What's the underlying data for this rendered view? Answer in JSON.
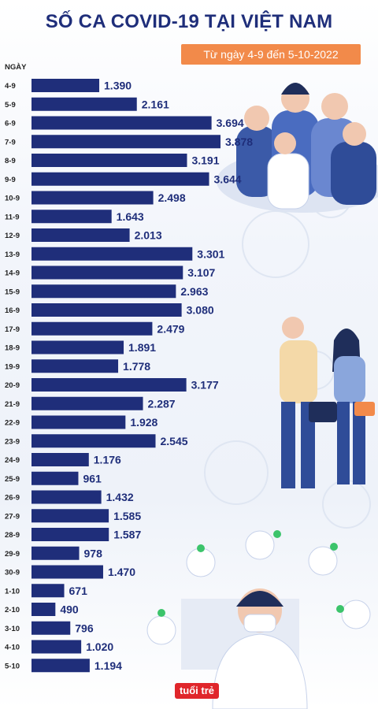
{
  "title": "SỐ CA COVID-19 TẠI VIỆT NAM",
  "subtitle": "Từ ngày 4-9 đến 5-10-2022",
  "logo_text": "tuổi trẻ",
  "colors": {
    "bar": "#1f2e7a",
    "accent": "#f28a4a",
    "title": "#1f2e7a"
  },
  "chart_data": {
    "type": "bar",
    "orientation": "horizontal",
    "category_axis_label": "NGÀY",
    "categories": [
      "4-9",
      "5-9",
      "6-9",
      "7-9",
      "8-9",
      "9-9",
      "10-9",
      "11-9",
      "12-9",
      "13-9",
      "14-9",
      "15-9",
      "16-9",
      "17-9",
      "18-9",
      "19-9",
      "20-9",
      "21-9",
      "22-9",
      "23-9",
      "24-9",
      "25-9",
      "26-9",
      "27-9",
      "28-9",
      "29-9",
      "30-9",
      "1-10",
      "2-10",
      "3-10",
      "4-10",
      "5-10"
    ],
    "values": [
      1390,
      2161,
      3694,
      3878,
      3191,
      3644,
      2498,
      1643,
      2013,
      3301,
      3107,
      2963,
      3080,
      2479,
      1891,
      1778,
      3177,
      2287,
      1928,
      2545,
      1176,
      961,
      1432,
      1585,
      1587,
      978,
      1470,
      671,
      490,
      796,
      1020,
      1194
    ],
    "value_labels": [
      "1.390",
      "2.161",
      "3.694",
      "3.878",
      "3.191",
      "3.644",
      "2.498",
      "1.643",
      "2.013",
      "3.301",
      "3.107",
      "2.963",
      "3.080",
      "2.479",
      "1.891",
      "1.778",
      "3.177",
      "2.287",
      "1.928",
      "2.545",
      "1.176",
      "961",
      "1.432",
      "1.585",
      "1.587",
      "978",
      "1.470",
      "671",
      "490",
      "796",
      "1.020",
      "1.194"
    ]
  }
}
